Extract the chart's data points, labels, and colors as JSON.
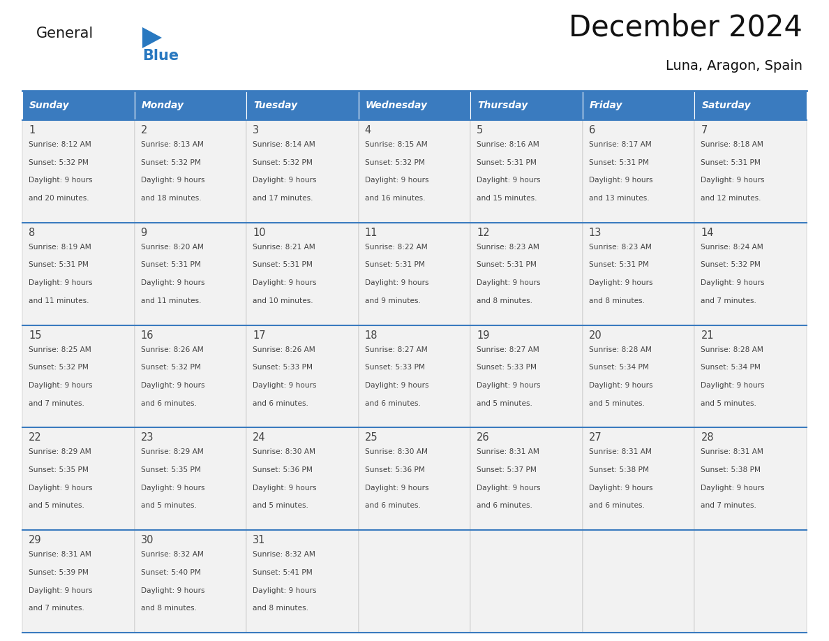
{
  "title": "December 2024",
  "subtitle": "Luna, Aragon, Spain",
  "header_bg_color": "#3a7bbf",
  "header_text_color": "#ffffff",
  "cell_bg_color": "#f2f2f2",
  "grid_line_color": "#3a7bbf",
  "cell_border_color": "#aaaaaa",
  "text_color": "#444444",
  "logo_text_color": "#1a1a1a",
  "logo_blue_color": "#2878c0",
  "days_of_week": [
    "Sunday",
    "Monday",
    "Tuesday",
    "Wednesday",
    "Thursday",
    "Friday",
    "Saturday"
  ],
  "weeks": [
    [
      {
        "day": "1",
        "sunrise": "8:12 AM",
        "sunset": "5:32 PM",
        "daylight_h": "9 hours",
        "daylight_m": "and 20 minutes."
      },
      {
        "day": "2",
        "sunrise": "8:13 AM",
        "sunset": "5:32 PM",
        "daylight_h": "9 hours",
        "daylight_m": "and 18 minutes."
      },
      {
        "day": "3",
        "sunrise": "8:14 AM",
        "sunset": "5:32 PM",
        "daylight_h": "9 hours",
        "daylight_m": "and 17 minutes."
      },
      {
        "day": "4",
        "sunrise": "8:15 AM",
        "sunset": "5:32 PM",
        "daylight_h": "9 hours",
        "daylight_m": "and 16 minutes."
      },
      {
        "day": "5",
        "sunrise": "8:16 AM",
        "sunset": "5:31 PM",
        "daylight_h": "9 hours",
        "daylight_m": "and 15 minutes."
      },
      {
        "day": "6",
        "sunrise": "8:17 AM",
        "sunset": "5:31 PM",
        "daylight_h": "9 hours",
        "daylight_m": "and 13 minutes."
      },
      {
        "day": "7",
        "sunrise": "8:18 AM",
        "sunset": "5:31 PM",
        "daylight_h": "9 hours",
        "daylight_m": "and 12 minutes."
      }
    ],
    [
      {
        "day": "8",
        "sunrise": "8:19 AM",
        "sunset": "5:31 PM",
        "daylight_h": "9 hours",
        "daylight_m": "and 11 minutes."
      },
      {
        "day": "9",
        "sunrise": "8:20 AM",
        "sunset": "5:31 PM",
        "daylight_h": "9 hours",
        "daylight_m": "and 11 minutes."
      },
      {
        "day": "10",
        "sunrise": "8:21 AM",
        "sunset": "5:31 PM",
        "daylight_h": "9 hours",
        "daylight_m": "and 10 minutes."
      },
      {
        "day": "11",
        "sunrise": "8:22 AM",
        "sunset": "5:31 PM",
        "daylight_h": "9 hours",
        "daylight_m": "and 9 minutes."
      },
      {
        "day": "12",
        "sunrise": "8:23 AM",
        "sunset": "5:31 PM",
        "daylight_h": "9 hours",
        "daylight_m": "and 8 minutes."
      },
      {
        "day": "13",
        "sunrise": "8:23 AM",
        "sunset": "5:31 PM",
        "daylight_h": "9 hours",
        "daylight_m": "and 8 minutes."
      },
      {
        "day": "14",
        "sunrise": "8:24 AM",
        "sunset": "5:32 PM",
        "daylight_h": "9 hours",
        "daylight_m": "and 7 minutes."
      }
    ],
    [
      {
        "day": "15",
        "sunrise": "8:25 AM",
        "sunset": "5:32 PM",
        "daylight_h": "9 hours",
        "daylight_m": "and 7 minutes."
      },
      {
        "day": "16",
        "sunrise": "8:26 AM",
        "sunset": "5:32 PM",
        "daylight_h": "9 hours",
        "daylight_m": "and 6 minutes."
      },
      {
        "day": "17",
        "sunrise": "8:26 AM",
        "sunset": "5:33 PM",
        "daylight_h": "9 hours",
        "daylight_m": "and 6 minutes."
      },
      {
        "day": "18",
        "sunrise": "8:27 AM",
        "sunset": "5:33 PM",
        "daylight_h": "9 hours",
        "daylight_m": "and 6 minutes."
      },
      {
        "day": "19",
        "sunrise": "8:27 AM",
        "sunset": "5:33 PM",
        "daylight_h": "9 hours",
        "daylight_m": "and 5 minutes."
      },
      {
        "day": "20",
        "sunrise": "8:28 AM",
        "sunset": "5:34 PM",
        "daylight_h": "9 hours",
        "daylight_m": "and 5 minutes."
      },
      {
        "day": "21",
        "sunrise": "8:28 AM",
        "sunset": "5:34 PM",
        "daylight_h": "9 hours",
        "daylight_m": "and 5 minutes."
      }
    ],
    [
      {
        "day": "22",
        "sunrise": "8:29 AM",
        "sunset": "5:35 PM",
        "daylight_h": "9 hours",
        "daylight_m": "and 5 minutes."
      },
      {
        "day": "23",
        "sunrise": "8:29 AM",
        "sunset": "5:35 PM",
        "daylight_h": "9 hours",
        "daylight_m": "and 5 minutes."
      },
      {
        "day": "24",
        "sunrise": "8:30 AM",
        "sunset": "5:36 PM",
        "daylight_h": "9 hours",
        "daylight_m": "and 5 minutes."
      },
      {
        "day": "25",
        "sunrise": "8:30 AM",
        "sunset": "5:36 PM",
        "daylight_h": "9 hours",
        "daylight_m": "and 6 minutes."
      },
      {
        "day": "26",
        "sunrise": "8:31 AM",
        "sunset": "5:37 PM",
        "daylight_h": "9 hours",
        "daylight_m": "and 6 minutes."
      },
      {
        "day": "27",
        "sunrise": "8:31 AM",
        "sunset": "5:38 PM",
        "daylight_h": "9 hours",
        "daylight_m": "and 6 minutes."
      },
      {
        "day": "28",
        "sunrise": "8:31 AM",
        "sunset": "5:38 PM",
        "daylight_h": "9 hours",
        "daylight_m": "and 7 minutes."
      }
    ],
    [
      {
        "day": "29",
        "sunrise": "8:31 AM",
        "sunset": "5:39 PM",
        "daylight_h": "9 hours",
        "daylight_m": "and 7 minutes."
      },
      {
        "day": "30",
        "sunrise": "8:32 AM",
        "sunset": "5:40 PM",
        "daylight_h": "9 hours",
        "daylight_m": "and 8 minutes."
      },
      {
        "day": "31",
        "sunrise": "8:32 AM",
        "sunset": "5:41 PM",
        "daylight_h": "9 hours",
        "daylight_m": "and 8 minutes."
      },
      null,
      null,
      null,
      null
    ]
  ]
}
